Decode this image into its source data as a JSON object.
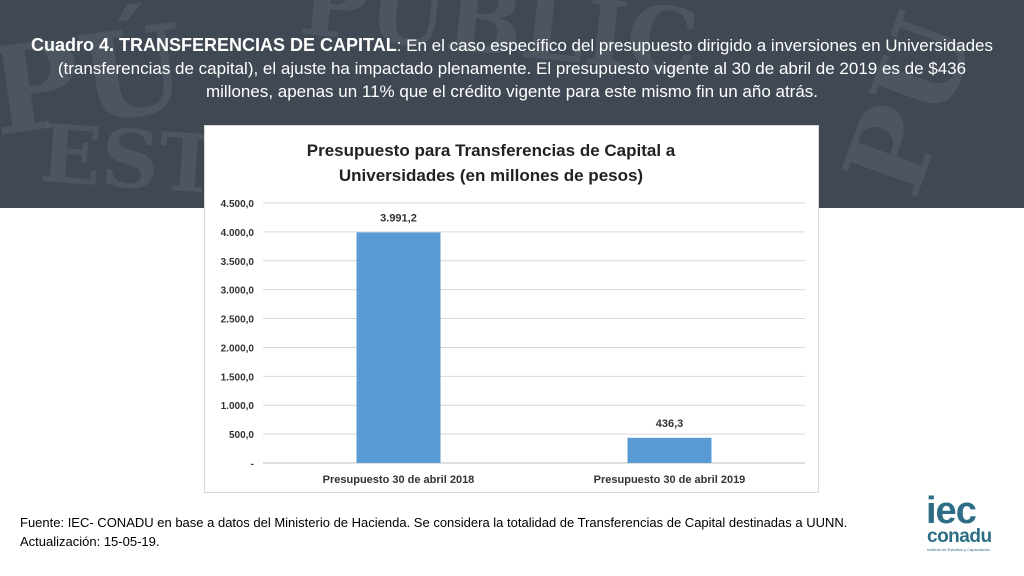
{
  "header": {
    "title_bold": "Cuadro 4. TRANSFERENCIAS DE CAPITAL",
    "title_rest": ": En el caso específico del presupuesto dirigido a inversiones en Universidades (transferencias de capital), el ajuste ha impactado plenamente. El presupuesto vigente al 30 de abril de 2019 es de $436 millones, apenas un 11% que el crédito vigente para este mismo fin un año atrás."
  },
  "chart_data": {
    "type": "bar",
    "title_line1": "Presupuesto para Transferencias de Capital a",
    "title_line2": "Universidades (en millones de pesos)",
    "categories": [
      "Presupuesto 30 de abril 2018",
      "Presupuesto 30 de abril 2019"
    ],
    "values": [
      3991.2,
      436.3
    ],
    "value_labels": [
      "3.991,2",
      "436,3"
    ],
    "ylim": [
      0,
      4500
    ],
    "yticks": [
      0,
      500,
      1000,
      1500,
      2000,
      2500,
      3000,
      3500,
      4000,
      4500
    ],
    "ytick_labels": [
      "-",
      "500,0",
      "1.000,0",
      "1.500,0",
      "2.000,0",
      "2.500,0",
      "3.000,0",
      "3.500,0",
      "4.000,0",
      "4.500,0"
    ],
    "grid": true,
    "bar_color": "#5b9bd5"
  },
  "footer": {
    "line1": "Fuente: IEC- CONADU en base a datos del Ministerio de Hacienda. Se considera la totalidad de Transferencias de Capital destinadas a UUNN.",
    "line2": "Actualización: 15-05-19."
  },
  "logo": {
    "iec": "iec",
    "conadu": "conadu",
    "subtitle": "Instituto de Estudios y Capacitación"
  }
}
